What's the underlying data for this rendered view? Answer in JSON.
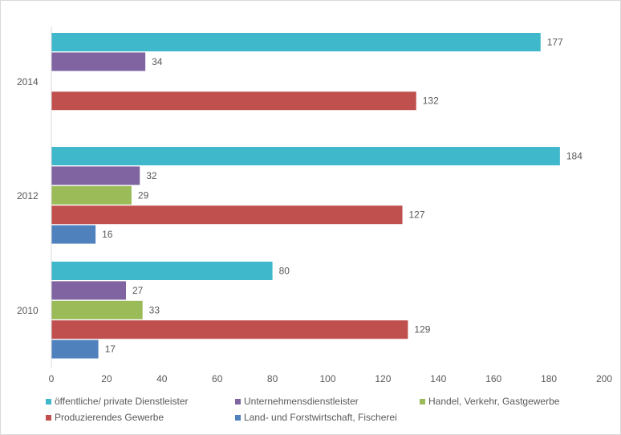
{
  "chart_data": {
    "type": "bar",
    "orientation": "horizontal",
    "categories": [
      "2014",
      "2012",
      "2010"
    ],
    "series": [
      {
        "name": "öffentliche/ private Dienstleister",
        "color": "#3fb8cc",
        "values": [
          177,
          184,
          80
        ]
      },
      {
        "name": "Unternehmensdienstleister",
        "color": "#8064a2",
        "values": [
          34,
          32,
          27
        ]
      },
      {
        "name": "Handel, Verkehr, Gastgewerbe",
        "color": "#9bbb59",
        "values": [
          null,
          29,
          33
        ]
      },
      {
        "name": "Produzierendes Gewerbe",
        "color": "#c0504d",
        "values": [
          132,
          127,
          129
        ]
      },
      {
        "name": "Land- und Forstwirtschaft, Fischerei",
        "color": "#4f81bd",
        "values": [
          null,
          16,
          17
        ]
      }
    ],
    "xlim": [
      0,
      200
    ],
    "xticks": [
      "0",
      "20",
      "40",
      "60",
      "80",
      "100",
      "120",
      "140",
      "160",
      "180",
      "200"
    ],
    "data_labels": true,
    "grid": false,
    "legend": "bottom"
  }
}
